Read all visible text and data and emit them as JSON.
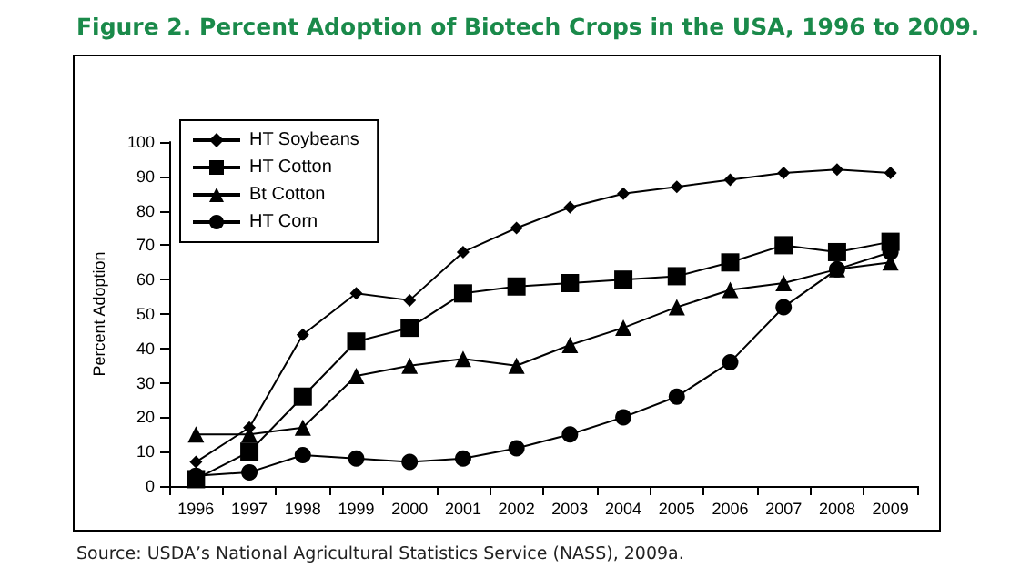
{
  "chart_data": {
    "type": "line",
    "title": "Figure 2. Percent Adoption of Biotech Crops in the USA, 1996 to 2009.",
    "ylabel": "Percent Adoption",
    "annotations": [
      "Source: USDA’s National Agricultural Statistics Service (NASS), 2009a."
    ],
    "categories": [
      "1996",
      "1997",
      "1998",
      "1999",
      "2000",
      "2001",
      "2002",
      "2003",
      "2004",
      "2005",
      "2006",
      "2007",
      "2008",
      "2009"
    ],
    "series": [
      {
        "name": "HT Soybeans",
        "color": "#000000",
        "marker": "diamond",
        "values": [
          7,
          17,
          44,
          56,
          54,
          68,
          75,
          81,
          85,
          87,
          89,
          91,
          92,
          91
        ]
      },
      {
        "name": "HT Cotton",
        "color": "#000000",
        "marker": "square",
        "values": [
          2,
          10,
          26,
          42,
          46,
          56,
          58,
          59,
          60,
          61,
          65,
          70,
          68,
          71
        ]
      },
      {
        "name": "Bt Cotton",
        "color": "#000000",
        "marker": "triangle",
        "values": [
          15,
          15,
          17,
          32,
          35,
          37,
          35,
          41,
          46,
          52,
          57,
          59,
          63,
          65
        ]
      },
      {
        "name": "HT Corn",
        "color": "#000000",
        "marker": "circle",
        "values": [
          3,
          4,
          9,
          8,
          7,
          8,
          11,
          15,
          20,
          26,
          36,
          52,
          63,
          68
        ]
      }
    ],
    "ylim": [
      0,
      100
    ],
    "yticks": [
      0,
      10,
      20,
      30,
      40,
      50,
      60,
      70,
      80,
      90,
      100
    ],
    "grid": false,
    "legend": "top left",
    "line_style": "solid"
  }
}
